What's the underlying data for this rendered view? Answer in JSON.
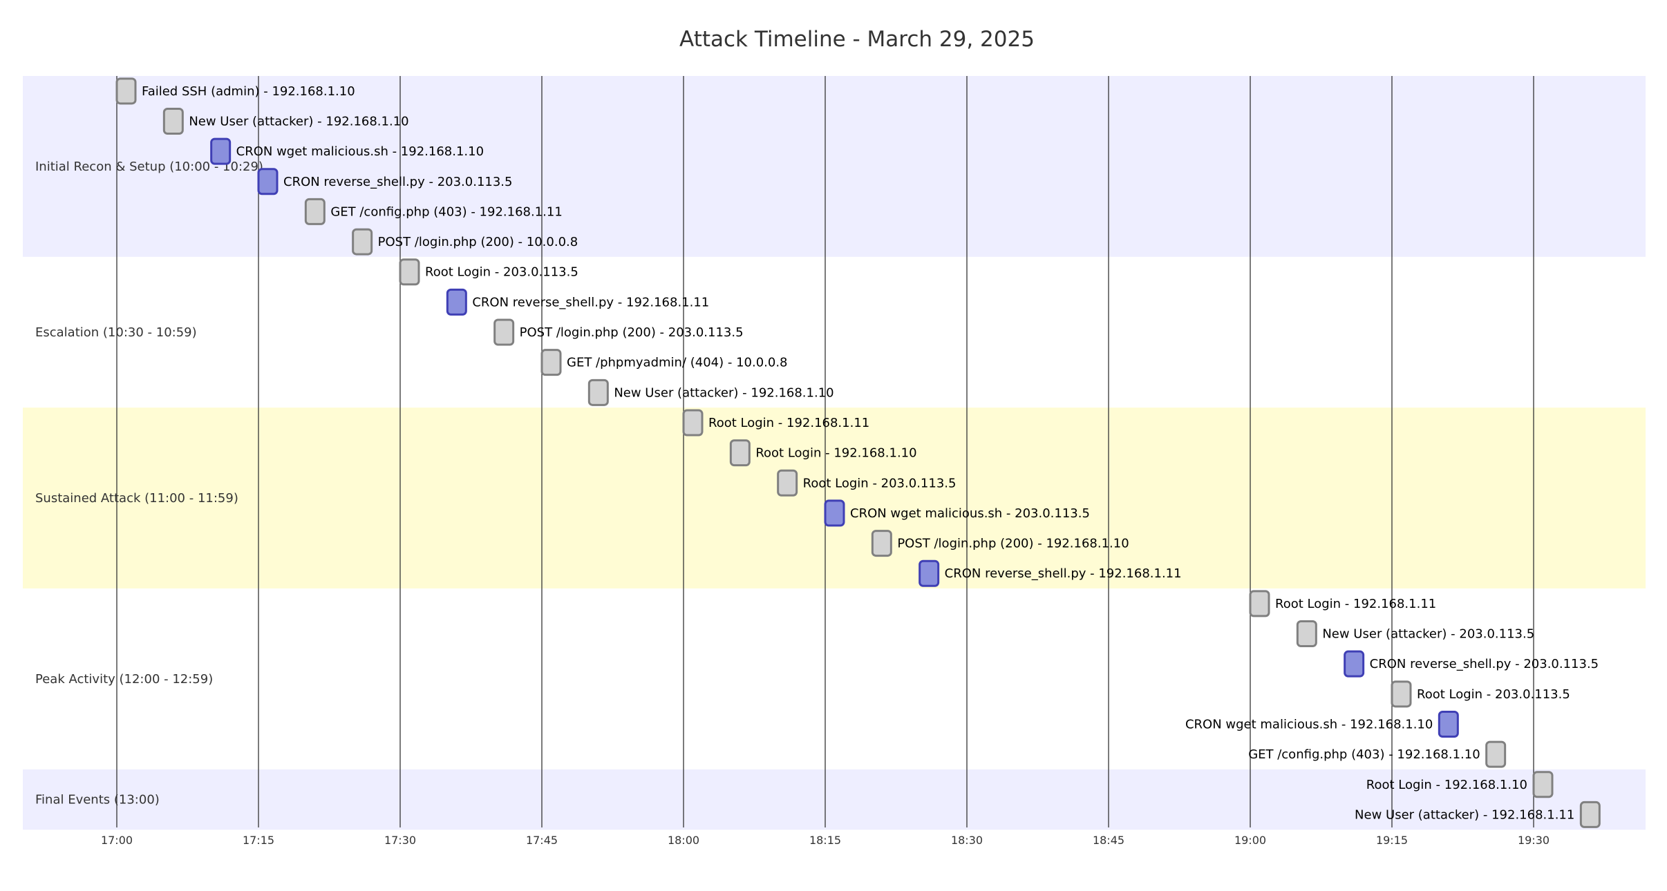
{
  "chart_data": {
    "type": "gantt",
    "title": "Attack Timeline - March 29, 2025",
    "time_axis": {
      "start": "16:59",
      "end": "19:40",
      "ticks": [
        "17:00",
        "17:15",
        "17:30",
        "17:45",
        "18:00",
        "18:15",
        "18:30",
        "18:45",
        "19:00",
        "19:15",
        "19:30"
      ],
      "grid": true
    },
    "colors": {
      "task_fill": "#d3d3d3",
      "task_stroke": "#808080",
      "crit_fill": "#8a90dd",
      "crit_stroke": "#3f3fb5",
      "section_band_1": "#eeeeff",
      "section_band_2": "#ffffff",
      "section_band_3": "#fffcd4"
    },
    "sections": [
      {
        "name": "Initial Recon & Setup (10:00 - 10:29)",
        "band": "section_band_1",
        "tasks": [
          {
            "label": "Failed SSH (admin) - 192.168.1.10",
            "time": "17:00",
            "crit": false
          },
          {
            "label": "New User (attacker) - 192.168.1.10",
            "time": "17:05",
            "crit": false
          },
          {
            "label": "CRON wget malicious.sh - 192.168.1.10",
            "time": "17:10",
            "crit": true
          },
          {
            "label": "CRON reverse_shell.py - 203.0.113.5",
            "time": "17:15",
            "crit": true
          },
          {
            "label": "GET /config.php (403) - 192.168.1.11",
            "time": "17:20",
            "crit": false
          },
          {
            "label": "POST /login.php (200) - 10.0.0.8",
            "time": "17:25",
            "crit": false
          }
        ]
      },
      {
        "name": "Escalation (10:30 - 10:59)",
        "band": "section_band_2",
        "tasks": [
          {
            "label": "Root Login - 203.0.113.5",
            "time": "17:30",
            "crit": false
          },
          {
            "label": "CRON reverse_shell.py - 192.168.1.11",
            "time": "17:35",
            "crit": true
          },
          {
            "label": "POST /login.php (200) - 203.0.113.5",
            "time": "17:40",
            "crit": false
          },
          {
            "label": "GET /phpmyadmin/ (404) - 10.0.0.8",
            "time": "17:45",
            "crit": false
          },
          {
            "label": "New User (attacker) - 192.168.1.10",
            "time": "17:50",
            "crit": false
          }
        ]
      },
      {
        "name": "Sustained Attack (11:00 - 11:59)",
        "band": "section_band_3",
        "tasks": [
          {
            "label": "Root Login - 192.168.1.11",
            "time": "18:00",
            "crit": false
          },
          {
            "label": "Root Login - 192.168.1.10",
            "time": "18:05",
            "crit": false
          },
          {
            "label": "Root Login - 203.0.113.5",
            "time": "18:10",
            "crit": false
          },
          {
            "label": "CRON wget malicious.sh - 203.0.113.5",
            "time": "18:15",
            "crit": true
          },
          {
            "label": "POST /login.php (200) - 192.168.1.10",
            "time": "18:20",
            "crit": false
          },
          {
            "label": "CRON reverse_shell.py - 192.168.1.11",
            "time": "18:25",
            "crit": true
          }
        ]
      },
      {
        "name": "Peak Activity (12:00 - 12:59)",
        "band": "section_band_2",
        "tasks": [
          {
            "label": "Root Login - 192.168.1.11",
            "time": "19:00",
            "crit": false
          },
          {
            "label": "New User (attacker) - 203.0.113.5",
            "time": "19:05",
            "crit": false
          },
          {
            "label": "CRON reverse_shell.py - 203.0.113.5",
            "time": "19:10",
            "crit": true
          },
          {
            "label": "Root Login - 203.0.113.5",
            "time": "19:15",
            "crit": false
          },
          {
            "label": "CRON wget malicious.sh - 192.168.1.10",
            "time": "19:20",
            "crit": true
          },
          {
            "label": "GET /config.php (403) - 192.168.1.10",
            "time": "19:25",
            "crit": false
          }
        ]
      },
      {
        "name": "Final Events (13:00)",
        "band": "section_band_1",
        "tasks": [
          {
            "label": "Root Login - 192.168.1.10",
            "time": "19:30",
            "crit": false
          },
          {
            "label": "New User (attacker) - 192.168.1.11",
            "time": "19:35",
            "crit": false
          }
        ]
      }
    ]
  }
}
